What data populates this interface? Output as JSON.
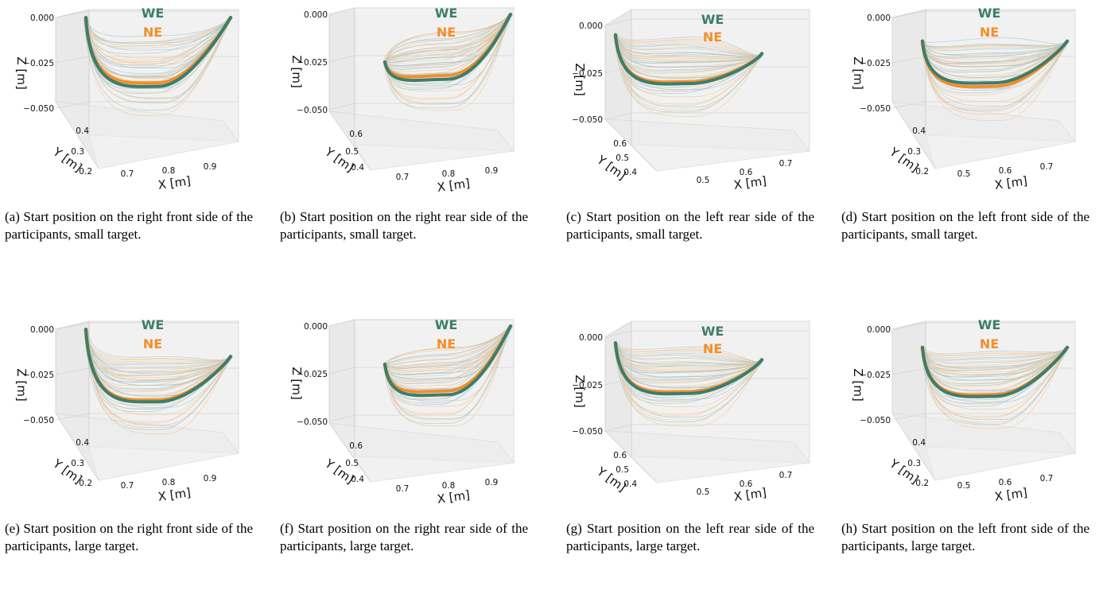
{
  "colors": {
    "WE": "#3d7d6b",
    "NE": "#f28e2b",
    "trace_a": "#9cc3cf",
    "trace_b": "#f6c38c"
  },
  "legend": {
    "we": "WE",
    "ne": "NE"
  },
  "chart_data": [
    {
      "type": "line3d",
      "zlabel": "Z [m]",
      "ylabel": "Y [m]",
      "xlabel": "X [m]",
      "ztick_labels": [
        "0.000",
        "−0.025",
        "−0.050"
      ],
      "ytick_labels": [
        "0.4",
        "0.3",
        "0.2"
      ],
      "xtick_labels": [
        "0.7",
        "0.8",
        "0.9"
      ],
      "series": [
        {
          "name": "WE",
          "z_start": 0.0,
          "z_min": -0.038,
          "z_end": 0.0
        },
        {
          "name": "NE",
          "z_start": 0.0,
          "z_min": -0.036,
          "z_end": 0.0
        }
      ],
      "caption": "(a) Start position on the right front side of the participants, small target."
    },
    {
      "type": "line3d",
      "zlabel": "Z [m]",
      "ylabel": "Y [m]",
      "xlabel": "X [m]",
      "ztick_labels": [
        "0.000",
        "−0.025",
        "−0.050"
      ],
      "ytick_labels": [
        "0.6",
        "0.5",
        "0.4"
      ],
      "xtick_labels": [
        "0.7",
        "0.8",
        "0.9"
      ],
      "series": [
        {
          "name": "WE",
          "z_start": -0.025,
          "z_min": -0.034,
          "z_end": 0.0
        },
        {
          "name": "NE",
          "z_start": -0.025,
          "z_min": -0.032,
          "z_end": 0.0
        }
      ],
      "caption": "(b) Start position on the right rear side of the participants, small target."
    },
    {
      "type": "line3d",
      "zlabel": "Z [m]",
      "ylabel": "Y [m]",
      "xlabel": "X [m]",
      "ztick_labels": [
        "0.000",
        "−0.025",
        "−0.050"
      ],
      "ytick_labels": [
        "0.6",
        "0.5",
        "0.4"
      ],
      "xtick_labels": [
        "0.5",
        "0.6",
        "0.7"
      ],
      "series": [
        {
          "name": "WE",
          "z_start": -0.005,
          "z_min": -0.031,
          "z_end": -0.015
        },
        {
          "name": "NE",
          "z_start": -0.005,
          "z_min": -0.03,
          "z_end": -0.015
        }
      ],
      "caption": "(c) Start position on the left rear side of the participants, small target."
    },
    {
      "type": "line3d",
      "zlabel": "Z [m]",
      "ylabel": "Y [m]",
      "xlabel": "X [m]",
      "ztick_labels": [
        "0.000",
        "−0.025",
        "−0.050"
      ],
      "ytick_labels": [
        "0.4",
        "0.3",
        "0.2"
      ],
      "xtick_labels": [
        "0.5",
        "0.6",
        "0.7"
      ],
      "series": [
        {
          "name": "WE",
          "z_start": -0.013,
          "z_min": -0.036,
          "z_end": -0.013
        },
        {
          "name": "NE",
          "z_start": -0.013,
          "z_min": -0.038,
          "z_end": -0.013
        }
      ],
      "caption": "(d) Start position on the left front side of the participants, small target."
    },
    {
      "type": "line3d",
      "zlabel": "Z [m]",
      "ylabel": "Y [m]",
      "xlabel": "X [m]",
      "ztick_labels": [
        "0.000",
        "−0.025",
        "−0.050"
      ],
      "ytick_labels": [
        "0.4",
        "0.3",
        "0.2"
      ],
      "xtick_labels": [
        "0.7",
        "0.8",
        "0.9"
      ],
      "series": [
        {
          "name": "WE",
          "z_start": 0.0,
          "z_min": -0.04,
          "z_end": -0.015
        },
        {
          "name": "NE",
          "z_start": 0.0,
          "z_min": -0.039,
          "z_end": -0.015
        }
      ],
      "caption": "(e) Start position on the right front side of the participants, large target."
    },
    {
      "type": "line3d",
      "zlabel": "Z [m]",
      "ylabel": "Y [m]",
      "xlabel": "X [m]",
      "ztick_labels": [
        "0.000",
        "−0.025",
        "−0.050"
      ],
      "ytick_labels": [
        "0.6",
        "0.5",
        "0.4"
      ],
      "xtick_labels": [
        "0.7",
        "0.8",
        "0.9"
      ],
      "series": [
        {
          "name": "WE",
          "z_start": -0.02,
          "z_min": -0.036,
          "z_end": 0.0
        },
        {
          "name": "NE",
          "z_start": -0.02,
          "z_min": -0.034,
          "z_end": 0.0
        }
      ],
      "caption": "(f) Start position on the right rear side of the participants, large target."
    },
    {
      "type": "line3d",
      "zlabel": "Z [m]",
      "ylabel": "Y [m]",
      "xlabel": "X [m]",
      "ztick_labels": [
        "0.000",
        "−0.025",
        "−0.050"
      ],
      "ytick_labels": [
        "0.6",
        "0.5",
        "0.4"
      ],
      "xtick_labels": [
        "0.5",
        "0.6",
        "0.7"
      ],
      "series": [
        {
          "name": "WE",
          "z_start": -0.003,
          "z_min": -0.03,
          "z_end": -0.012
        },
        {
          "name": "NE",
          "z_start": -0.003,
          "z_min": -0.029,
          "z_end": -0.012
        }
      ],
      "caption": "(g) Start position on the left rear side of the participants, large target."
    },
    {
      "type": "line3d",
      "zlabel": "Z [m]",
      "ylabel": "Y [m]",
      "xlabel": "X [m]",
      "ztick_labels": [
        "0.000",
        "−0.025",
        "−0.050"
      ],
      "ytick_labels": [
        "0.4",
        "0.3",
        "0.2"
      ],
      "xtick_labels": [
        "0.5",
        "0.6",
        "0.7"
      ],
      "series": [
        {
          "name": "WE",
          "z_start": -0.01,
          "z_min": -0.037,
          "z_end": -0.01
        },
        {
          "name": "NE",
          "z_start": -0.01,
          "z_min": -0.036,
          "z_end": -0.01
        }
      ],
      "caption": "(h) Start position on the left front side of the participants, large target."
    }
  ]
}
